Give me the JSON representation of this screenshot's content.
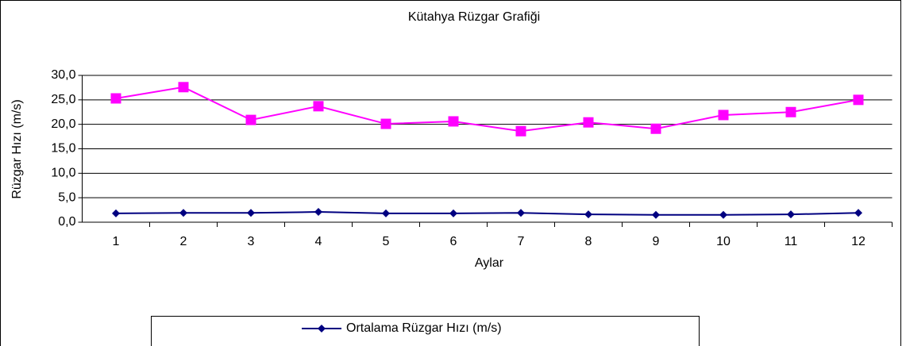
{
  "chart_data": {
    "type": "line",
    "title": "Kütahya Rüzgar Grafiği",
    "x_label": "Aylar",
    "y_label": "Rüzgar Hızı (m/s)",
    "categories": [
      "1",
      "2",
      "3",
      "4",
      "5",
      "6",
      "7",
      "8",
      "9",
      "10",
      "11",
      "12"
    ],
    "series": [
      {
        "name": "Ortalama Rüzgar Hızı (m/s)",
        "color": "#000080",
        "marker": "diamond",
        "values": [
          1.8,
          1.9,
          1.9,
          2.1,
          1.8,
          1.8,
          1.9,
          1.6,
          1.5,
          1.5,
          1.6,
          1.9
        ]
      },
      {
        "color": "#ff00ff",
        "marker": "square",
        "values": [
          25.3,
          27.6,
          20.9,
          23.7,
          20.1,
          20.6,
          18.6,
          20.4,
          19.1,
          21.9,
          22.5,
          25.0
        ]
      }
    ],
    "ylim": [
      0,
      30
    ],
    "yticks": [
      {
        "value": 0,
        "label": "0,0"
      },
      {
        "value": 5,
        "label": "5,0"
      },
      {
        "value": 10,
        "label": "10,0"
      },
      {
        "value": 15,
        "label": "15,0"
      },
      {
        "value": 20,
        "label": "20,0"
      },
      {
        "value": 25,
        "label": "25,0"
      },
      {
        "value": 30,
        "label": "30,0"
      }
    ],
    "grid": true,
    "legend": "bottom"
  }
}
